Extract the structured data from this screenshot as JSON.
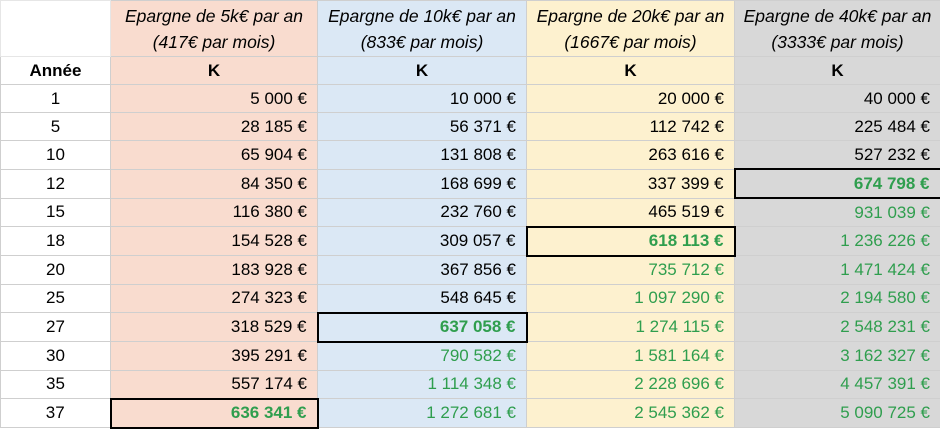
{
  "table": {
    "plans": [
      {
        "title": "Epargne de 5k€ par an",
        "subtitle": "(417€ par mois)"
      },
      {
        "title": "Epargne de 10k€ par an",
        "subtitle": "(833€ par mois)"
      },
      {
        "title": "Epargne de 20k€ par an",
        "subtitle": "(1667€ par mois)"
      },
      {
        "title": "Epargne de 40k€ par an",
        "subtitle": "(3333€ par mois)"
      }
    ],
    "year_header": "Année",
    "value_header": "K",
    "colors": {
      "plan_5k": "#f9dccf",
      "plan_10k": "#dbe8f5",
      "plan_20k": "#fdf1cf",
      "plan_40k": "#d8d8d8",
      "green_text": "#2f9e4e"
    },
    "rows": [
      {
        "year": "1",
        "values": [
          "5 000 €",
          "10 000 €",
          "20 000 €",
          "40 000 €"
        ],
        "style": [
          "n",
          "n",
          "n",
          "n"
        ]
      },
      {
        "year": "5",
        "values": [
          "28 185 €",
          "56 371 €",
          "112 742 €",
          "225 484 €"
        ],
        "style": [
          "n",
          "n",
          "n",
          "n"
        ]
      },
      {
        "year": "10",
        "values": [
          "65 904 €",
          "131 808 €",
          "263 616 €",
          "527 232 €"
        ],
        "style": [
          "n",
          "n",
          "n",
          "n"
        ]
      },
      {
        "year": "12",
        "values": [
          "84 350 €",
          "168 699 €",
          "337 399 €",
          "674 798 €"
        ],
        "style": [
          "n",
          "n",
          "n",
          "h"
        ]
      },
      {
        "year": "15",
        "values": [
          "116 380 €",
          "232 760 €",
          "465 519 €",
          "931 039 €"
        ],
        "style": [
          "n",
          "n",
          "n",
          "g"
        ]
      },
      {
        "year": "18",
        "values": [
          "154 528 €",
          "309 057 €",
          "618 113 €",
          "1 236 226 €"
        ],
        "style": [
          "n",
          "n",
          "h",
          "g"
        ]
      },
      {
        "year": "20",
        "values": [
          "183 928 €",
          "367 856 €",
          "735 712 €",
          "1 471 424 €"
        ],
        "style": [
          "n",
          "n",
          "g",
          "g"
        ]
      },
      {
        "year": "25",
        "values": [
          "274 323 €",
          "548 645 €",
          "1 097 290 €",
          "2 194 580 €"
        ],
        "style": [
          "n",
          "n",
          "g",
          "g"
        ]
      },
      {
        "year": "27",
        "values": [
          "318 529 €",
          "637 058 €",
          "1 274 115 €",
          "2 548 231 €"
        ],
        "style": [
          "n",
          "h",
          "g",
          "g"
        ]
      },
      {
        "year": "30",
        "values": [
          "395 291 €",
          "790 582 €",
          "1 581 164 €",
          "3 162 327 €"
        ],
        "style": [
          "n",
          "g",
          "g",
          "g"
        ]
      },
      {
        "year": "35",
        "values": [
          "557 174 €",
          "1 114 348 €",
          "2 228 696 €",
          "4 457 391 €"
        ],
        "style": [
          "n",
          "g",
          "g",
          "g"
        ]
      },
      {
        "year": "37",
        "values": [
          "636 341 €",
          "1 272 681 €",
          "2 545 362 €",
          "5 090 725 €"
        ],
        "style": [
          "h",
          "g",
          "g",
          "g"
        ]
      }
    ]
  }
}
